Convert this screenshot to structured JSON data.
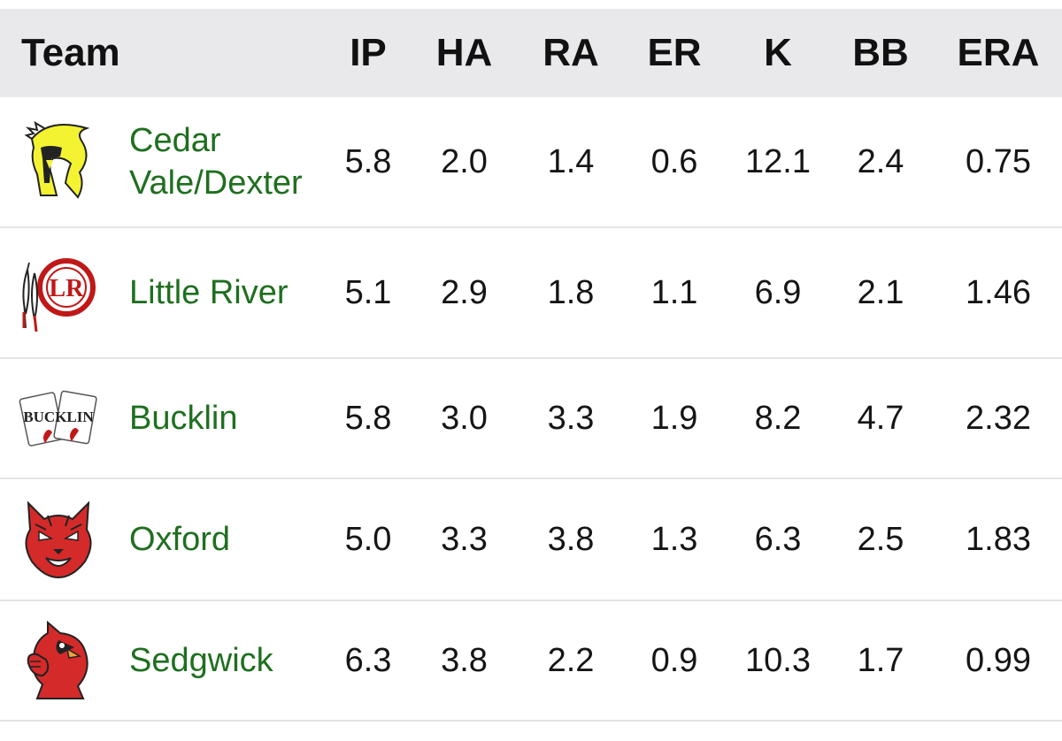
{
  "header": {
    "team": "Team",
    "columns": [
      "IP",
      "HA",
      "RA",
      "ER",
      "K",
      "BB",
      "ERA"
    ]
  },
  "rows": [
    {
      "team": "Cedar Vale/Dexter",
      "logo": "spartan-helmet-icon",
      "stats": [
        "5.8",
        "2.0",
        "1.4",
        "0.6",
        "12.1",
        "2.4",
        "0.75"
      ]
    },
    {
      "team": "Little River",
      "logo": "lr-feather-icon",
      "stats": [
        "5.1",
        "2.9",
        "1.8",
        "1.1",
        "6.9",
        "2.1",
        "1.46"
      ]
    },
    {
      "team": "Bucklin",
      "logo": "playing-cards-icon",
      "stats": [
        "5.8",
        "3.0",
        "3.3",
        "1.9",
        "8.2",
        "4.7",
        "2.32"
      ]
    },
    {
      "team": "Oxford",
      "logo": "bobcat-head-icon",
      "stats": [
        "5.0",
        "3.3",
        "3.8",
        "1.3",
        "6.3",
        "2.5",
        "1.83"
      ]
    },
    {
      "team": "Sedgwick",
      "logo": "cardinal-bird-icon",
      "stats": [
        "6.3",
        "3.8",
        "2.2",
        "0.9",
        "10.3",
        "1.7",
        "0.99"
      ]
    }
  ],
  "colors": {
    "header_bg": "#e9e9ec",
    "team_text": "#1f6f1f",
    "divider": "#e4e4e4"
  }
}
